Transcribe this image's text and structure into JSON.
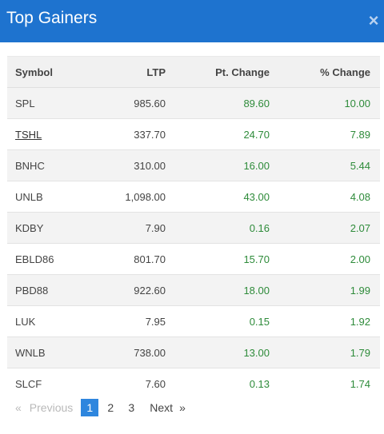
{
  "header": {
    "title": "Top Gainers",
    "close_glyph": "×"
  },
  "table": {
    "columns": [
      "Symbol",
      "LTP",
      "Pt. Change",
      "% Change"
    ],
    "rows": [
      {
        "symbol": "SPL",
        "ltp": "985.60",
        "pt_change": "89.60",
        "pct_change": "10.00"
      },
      {
        "symbol": "TSHL",
        "ltp": "337.70",
        "pt_change": "24.70",
        "pct_change": "7.89"
      },
      {
        "symbol": "BNHC",
        "ltp": "310.00",
        "pt_change": "16.00",
        "pct_change": "5.44"
      },
      {
        "symbol": "UNLB",
        "ltp": "1,098.00",
        "pt_change": "43.00",
        "pct_change": "4.08"
      },
      {
        "symbol": "KDBY",
        "ltp": "7.90",
        "pt_change": "0.16",
        "pct_change": "2.07"
      },
      {
        "symbol": "EBLD86",
        "ltp": "801.70",
        "pt_change": "15.70",
        "pct_change": "2.00"
      },
      {
        "symbol": "PBD88",
        "ltp": "922.60",
        "pt_change": "18.00",
        "pct_change": "1.99"
      },
      {
        "symbol": "LUK",
        "ltp": "7.95",
        "pt_change": "0.15",
        "pct_change": "1.92"
      },
      {
        "symbol": "WNLB",
        "ltp": "738.00",
        "pt_change": "13.00",
        "pct_change": "1.79"
      },
      {
        "symbol": "SLCF",
        "ltp": "7.60",
        "pt_change": "0.13",
        "pct_change": "1.74"
      }
    ]
  },
  "pagination": {
    "prev_arrow": "«",
    "prev_label": "Previous",
    "pages": [
      "1",
      "2",
      "3"
    ],
    "active_page": "1",
    "next_label": "Next",
    "next_arrow": "»"
  },
  "colors": {
    "header_bg": "#1e73cf",
    "positive": "#2e8b3a",
    "active_page": "#2e86de"
  }
}
